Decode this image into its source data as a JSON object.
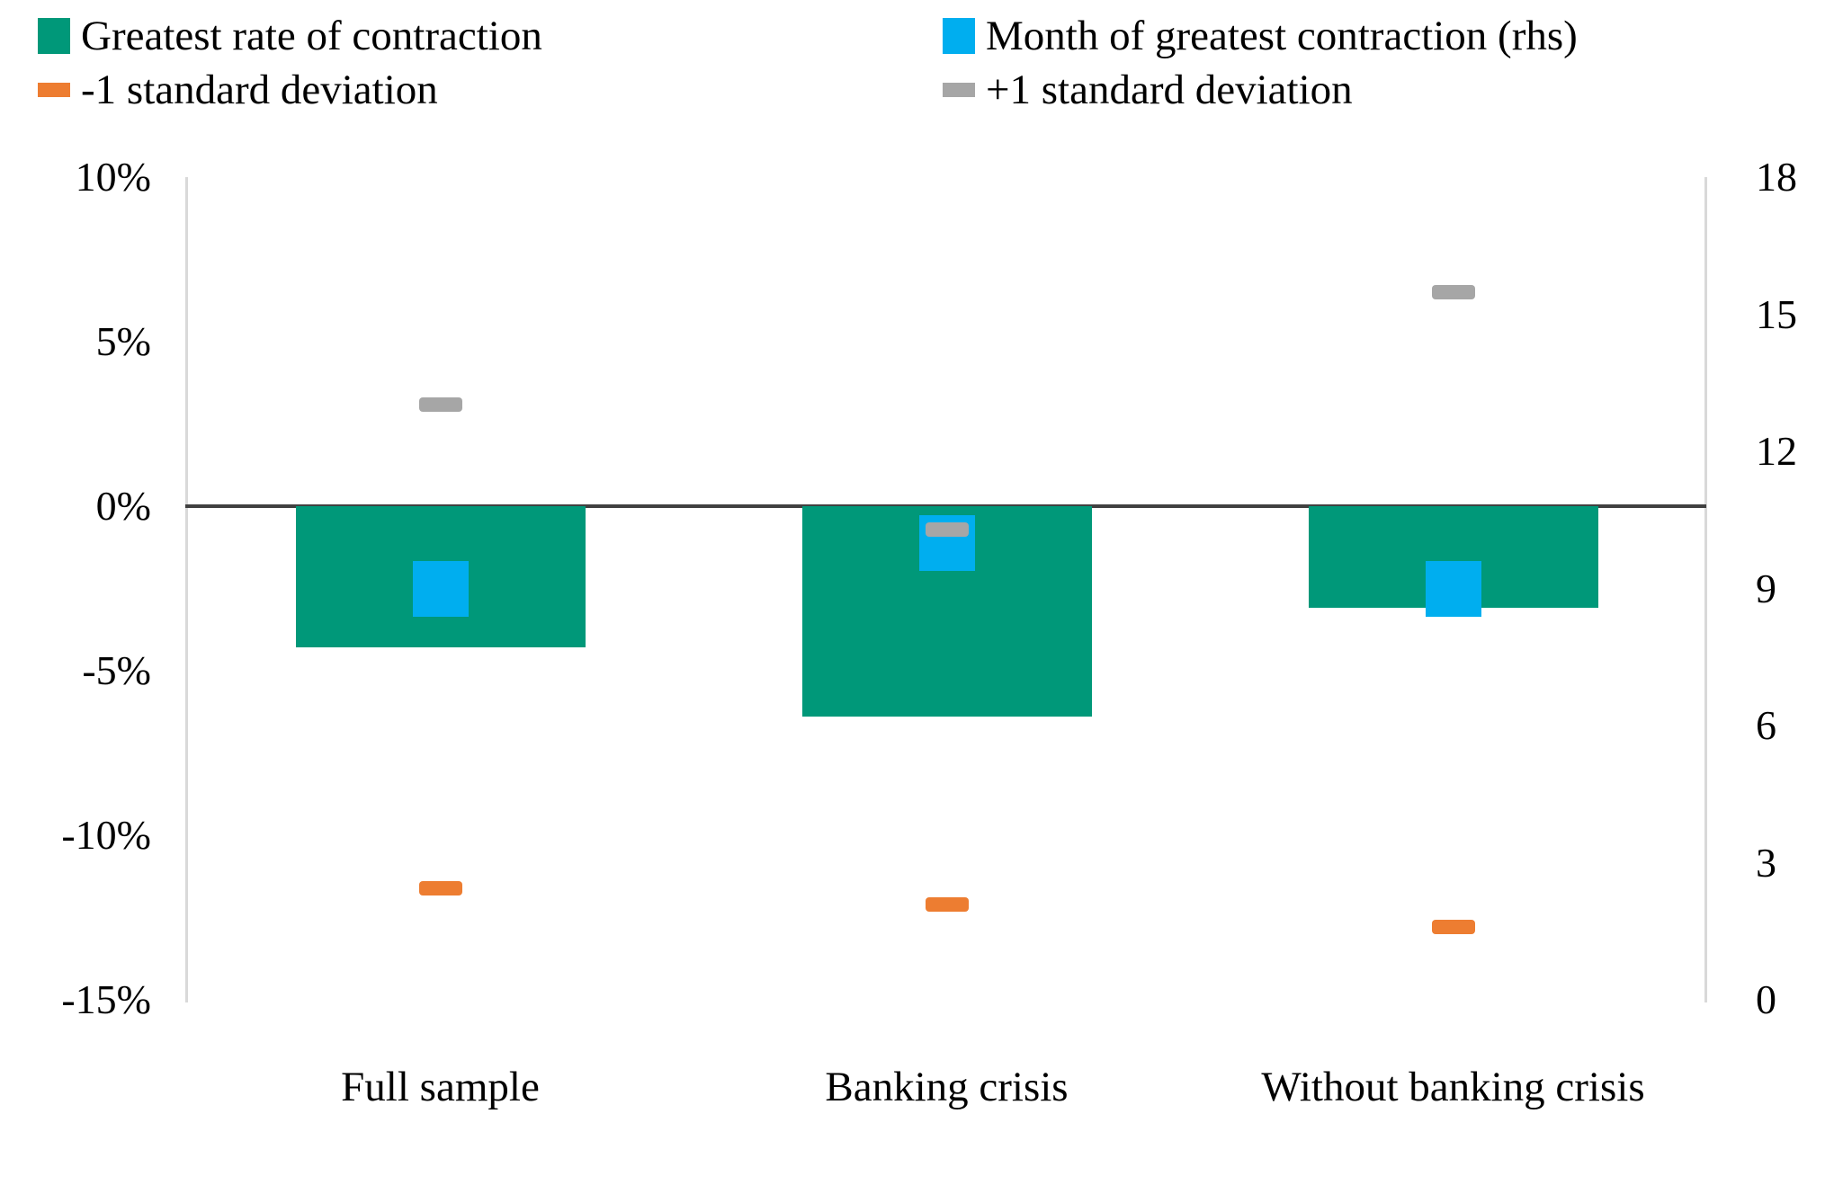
{
  "legend": {
    "items": [
      {
        "label": "Greatest rate of contraction",
        "color": "#009879",
        "marker": "square"
      },
      {
        "label": "Month of greatest contraction (rhs)",
        "color": "#00AEEF",
        "marker": "square"
      },
      {
        "label": "-1 standard deviation",
        "color": "#ED7D31",
        "marker": "dash"
      },
      {
        "label": "+1 standard deviation",
        "color": "#A6A6A6",
        "marker": "dash"
      }
    ]
  },
  "chart_data": {
    "type": "bar",
    "categories": [
      "Full sample",
      "Banking crisis",
      "Without banking crisis"
    ],
    "series": [
      {
        "name": "Greatest rate of contraction",
        "type": "bar",
        "axis": "left",
        "unit": "%",
        "color": "#009879",
        "values": [
          -4.3,
          -6.4,
          -3.1
        ]
      },
      {
        "name": "Month of greatest contraction (rhs)",
        "type": "square-marker",
        "axis": "right",
        "unit": "months",
        "color": "#00AEEF",
        "values": [
          9,
          10,
          9
        ]
      },
      {
        "name": "-1 standard deviation",
        "type": "dash-marker",
        "axis": "left",
        "unit": "%",
        "color": "#ED7D31",
        "values": [
          -11.6,
          -12.1,
          -12.8
        ]
      },
      {
        "name": "+1 standard deviation",
        "type": "dash-marker",
        "axis": "left",
        "unit": "%",
        "color": "#A6A6A6",
        "values": [
          3.1,
          -0.7,
          6.5
        ]
      }
    ],
    "left_axis": {
      "max": 10,
      "min": -15,
      "tick_step": 5,
      "tick_labels": [
        "10%",
        "5%",
        "0%",
        "-5%",
        "-10%",
        "-15%"
      ],
      "format": "percent"
    },
    "right_axis": {
      "max": 18,
      "min": 0,
      "tick_step": 3,
      "tick_labels": [
        "18",
        "15",
        "12",
        "9",
        "6",
        "3",
        "0"
      ]
    },
    "title": "",
    "grid": false,
    "legend_position": "top"
  },
  "colors": {
    "contraction_bar": "#009879",
    "month_marker": "#00AEEF",
    "minus_1_sd": "#ED7D31",
    "plus_1_sd": "#A6A6A6",
    "zero_line": "#404040",
    "axis_line": "#d9d9d9",
    "text": "#000000"
  }
}
